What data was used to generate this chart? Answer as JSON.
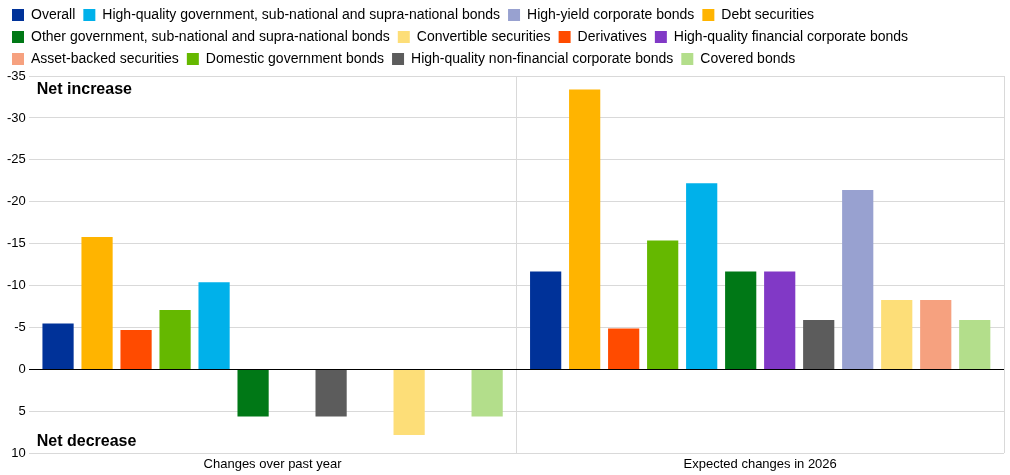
{
  "chart_data": {
    "type": "bar",
    "categories": [
      "Changes over past year",
      "Expected changes in 2026"
    ],
    "series": [
      {
        "name": "Overall",
        "color": "#003299",
        "values": [
          -5.5,
          -11.7
        ]
      },
      {
        "name": "Debt securities",
        "color": "#ffb400",
        "values": [
          -15.8,
          -33.4
        ]
      },
      {
        "name": "Derivatives",
        "color": "#ff4b00",
        "values": [
          -4.7,
          -4.9
        ]
      },
      {
        "name": "Domestic government bonds",
        "color": "#65b800",
        "values": [
          -7.1,
          -15.4
        ]
      },
      {
        "name": "High-quality government, sub-national and supra-national bonds",
        "color": "#00b1ea",
        "values": [
          -10.4,
          -22.2
        ]
      },
      {
        "name": "Other government, sub-national and supra-national bonds",
        "color": "#007816",
        "values": [
          5.6,
          -11.7
        ]
      },
      {
        "name": "High-quality financial corporate bonds",
        "color": "#8139c6",
        "values": [
          null,
          -11.7
        ]
      },
      {
        "name": "High-quality non-financial corporate bonds",
        "color": "#5c5c5c",
        "values": [
          5.6,
          -5.9
        ]
      },
      {
        "name": "High-yield corporate bonds",
        "color": "#98a1d0",
        "values": [
          null,
          -21.4
        ]
      },
      {
        "name": "Convertible securities",
        "color": "#fdde78",
        "values": [
          7.8,
          -8.3
        ]
      },
      {
        "name": "Asset-backed securities",
        "color": "#f6a17f",
        "values": [
          null,
          -8.3
        ]
      },
      {
        "name": "Covered bonds",
        "color": "#b3de8b",
        "values": [
          5.6,
          -5.9
        ]
      }
    ],
    "ylim": [
      10,
      -35
    ],
    "yticks": [
      10,
      5,
      0,
      -5,
      -10,
      -15,
      -20,
      -25,
      -30,
      -35
    ],
    "grid": true,
    "legend": "top",
    "annotations": [
      "Net increase",
      "Net decrease"
    ]
  }
}
